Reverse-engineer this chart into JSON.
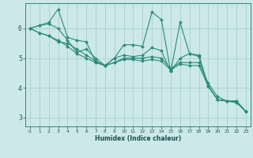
{
  "xlabel": "Humidex (Indice chaleur)",
  "ylabel": "",
  "bg_color": "#cce8e8",
  "grid_color": "#aad0d0",
  "line_color": "#2a8a7a",
  "xlim": [
    -0.5,
    23.5
  ],
  "ylim": [
    2.7,
    6.85
  ],
  "yticks": [
    3,
    4,
    5,
    6
  ],
  "xticks": [
    0,
    1,
    2,
    3,
    4,
    5,
    6,
    7,
    8,
    9,
    10,
    11,
    12,
    13,
    14,
    15,
    16,
    17,
    18,
    19,
    20,
    21,
    22,
    23
  ],
  "lines": [
    [
      6.0,
      6.1,
      6.2,
      6.65,
      5.7,
      5.6,
      5.55,
      4.85,
      4.75,
      5.0,
      5.45,
      5.45,
      5.4,
      6.55,
      6.3,
      4.55,
      6.2,
      5.15,
      5.1,
      4.05,
      3.6,
      3.55,
      3.55,
      3.2
    ],
    [
      6.0,
      6.1,
      6.15,
      6.0,
      5.6,
      5.2,
      5.3,
      5.0,
      4.75,
      5.0,
      5.1,
      5.05,
      5.1,
      5.35,
      5.25,
      4.55,
      5.0,
      5.15,
      5.05,
      4.05,
      3.6,
      3.55,
      3.55,
      3.2
    ],
    [
      6.0,
      5.85,
      5.75,
      5.55,
      5.5,
      5.3,
      5.1,
      4.9,
      4.75,
      4.85,
      5.0,
      5.0,
      5.0,
      5.05,
      5.0,
      4.65,
      4.85,
      4.85,
      4.85,
      4.15,
      3.7,
      3.55,
      3.55,
      3.2
    ],
    [
      6.0,
      5.85,
      5.75,
      5.6,
      5.4,
      5.15,
      5.0,
      4.85,
      4.75,
      4.85,
      4.95,
      4.95,
      4.9,
      4.95,
      4.9,
      4.6,
      4.8,
      4.75,
      4.75,
      4.05,
      3.6,
      3.55,
      3.5,
      3.2
    ]
  ],
  "xlabel_fontsize": 5.5,
  "xlabel_bold": true,
  "ytick_fontsize": 5.5,
  "xtick_fontsize": 4.2,
  "tick_color": "#1a5050",
  "spine_color": "#2a8a7a",
  "marker_size": 2.0,
  "line_width": 0.8
}
